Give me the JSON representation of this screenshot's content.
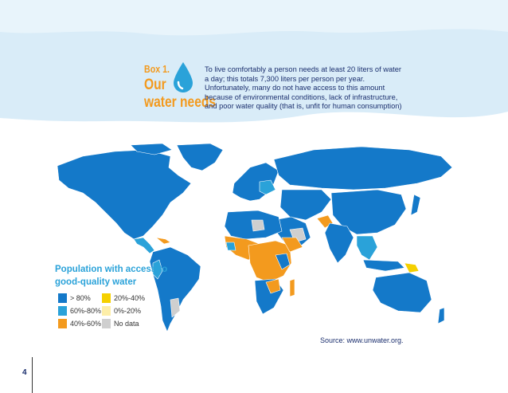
{
  "box": {
    "label": "Box 1.",
    "title_line1": "Our",
    "title_line2": "water needs",
    "intro": "To live comfortably a person needs at least 20 liters of water a day; this totals 7,300 liters per person per year. Unfortunately, many do not have access to this amount because of environmental conditions, lack of infrastructure, and poor water quality (that is, unfit for human consumption)"
  },
  "legend": {
    "title": "Population with access to good-quality water",
    "items": [
      {
        "label": "> 80%",
        "color": "#1479c9"
      },
      {
        "label": "60%-80%",
        "color": "#2aa2d9"
      },
      {
        "label": "40%-60%",
        "color": "#f39a1e"
      },
      {
        "label": "20%-40%",
        "color": "#f5d000"
      },
      {
        "label": "0%-20%",
        "color": "#fdeea8"
      },
      {
        "label": "No data",
        "color": "#cfcfcf"
      }
    ]
  },
  "source": "Source: www.unwater.org.",
  "page_number": "4",
  "colors": {
    "banner": "#d9ecf8",
    "text_blue": "#1b2f6e",
    "accent_orange": "#f39a1e"
  }
}
